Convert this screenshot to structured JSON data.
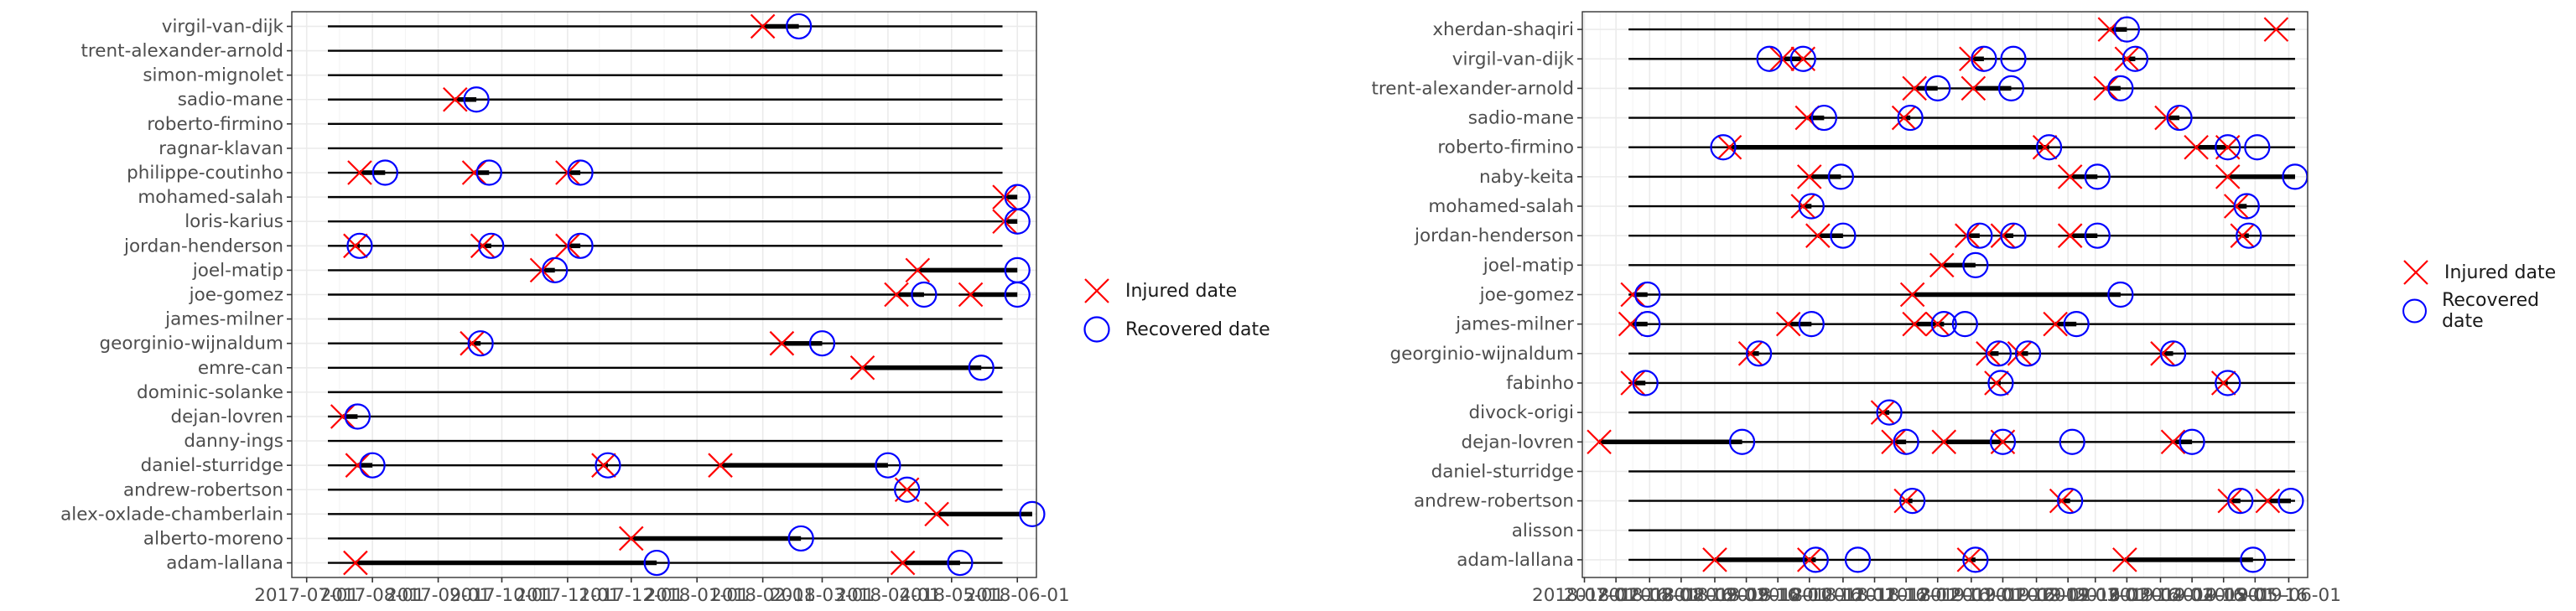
{
  "legend": {
    "injured_label": "Injured date",
    "recovered_label": "Recovered date"
  },
  "colors": {
    "injured": "#ff0000",
    "recovered": "#0000ff",
    "segment": "#000000",
    "grid": "#ebebeb",
    "axis_text": "#4d4d4d"
  },
  "chart_data": [
    {
      "type": "scatter",
      "title": "",
      "xlabel": "",
      "ylabel": "",
      "x_ticks": [
        "2017-07-01",
        "2017-08-01",
        "2017-09-01",
        "2017-10-01",
        "2017-11-01",
        "2017-12-01",
        "2018-01-01",
        "2018-02-01",
        "2018-03-01",
        "2018-04-01",
        "2018-05-01",
        "2018-06-01"
      ],
      "x_tick_labels": [
        "2017-07-01",
        "2017-08-01",
        "2017-09-01",
        "2017-10-01",
        "2017-11-01",
        "2017-12-01",
        "2018-01-01",
        "2018-02-01",
        "2018-03-01",
        "2018-04-01",
        "2018-05-01",
        "2018-06-01"
      ],
      "xlim": [
        "2017-06-24",
        "2018-06-10"
      ],
      "season_range": [
        "2017-07-11",
        "2018-05-25"
      ],
      "grid": true,
      "legend_position": "right",
      "players": [
        "virgil-van-dijk",
        "trent-alexander-arnold",
        "simon-mignolet",
        "sadio-mane",
        "roberto-firmino",
        "ragnar-klavan",
        "philippe-coutinho",
        "mohamed-salah",
        "loris-karius",
        "jordan-henderson",
        "joel-matip",
        "joe-gomez",
        "james-milner",
        "georginio-wijnaldum",
        "emre-can",
        "dominic-solanke",
        "dejan-lovren",
        "danny-ings",
        "daniel-sturridge",
        "andrew-robertson",
        "alex-oxlade-chamberlain",
        "alberto-moreno",
        "adam-lallana"
      ],
      "series": [
        {
          "name": "Injured date",
          "marker": "x",
          "points": [
            [
              "virgil-van-dijk",
              "2018-02-01"
            ],
            [
              "sadio-mane",
              "2017-09-09"
            ],
            [
              "philippe-coutinho",
              "2017-07-26"
            ],
            [
              "philippe-coutinho",
              "2017-09-18"
            ],
            [
              "philippe-coutinho",
              "2017-11-01"
            ],
            [
              "mohamed-salah",
              "2018-05-26"
            ],
            [
              "loris-karius",
              "2018-05-26"
            ],
            [
              "jordan-henderson",
              "2017-07-24"
            ],
            [
              "jordan-henderson",
              "2017-09-22"
            ],
            [
              "jordan-henderson",
              "2017-11-01"
            ],
            [
              "joel-matip",
              "2017-10-20"
            ],
            [
              "joel-matip",
              "2018-04-15"
            ],
            [
              "joe-gomez",
              "2018-04-05"
            ],
            [
              "joe-gomez",
              "2018-05-10"
            ],
            [
              "georginio-wijnaldum",
              "2017-09-17"
            ],
            [
              "georginio-wijnaldum",
              "2018-02-10"
            ],
            [
              "emre-can",
              "2018-03-20"
            ],
            [
              "dejan-lovren",
              "2017-07-18"
            ],
            [
              "daniel-sturridge",
              "2017-07-25"
            ],
            [
              "daniel-sturridge",
              "2017-11-18"
            ],
            [
              "daniel-sturridge",
              "2018-01-12"
            ],
            [
              "andrew-robertson",
              "2018-04-10"
            ],
            [
              "alex-oxlade-chamberlain",
              "2018-04-24"
            ],
            [
              "alberto-moreno",
              "2017-12-01"
            ],
            [
              "adam-lallana",
              "2017-07-24"
            ],
            [
              "adam-lallana",
              "2018-04-08"
            ]
          ]
        },
        {
          "name": "Recovered date",
          "marker": "o",
          "points": [
            [
              "virgil-van-dijk",
              "2018-02-18"
            ],
            [
              "sadio-mane",
              "2017-09-19"
            ],
            [
              "philippe-coutinho",
              "2017-08-07"
            ],
            [
              "philippe-coutinho",
              "2017-09-25"
            ],
            [
              "philippe-coutinho",
              "2017-11-07"
            ],
            [
              "mohamed-salah",
              "2018-06-01"
            ],
            [
              "loris-karius",
              "2018-06-01"
            ],
            [
              "jordan-henderson",
              "2017-07-26"
            ],
            [
              "jordan-henderson",
              "2017-09-26"
            ],
            [
              "jordan-henderson",
              "2017-11-07"
            ],
            [
              "joel-matip",
              "2017-10-26"
            ],
            [
              "joel-matip",
              "2018-06-01"
            ],
            [
              "joe-gomez",
              "2018-04-18"
            ],
            [
              "joe-gomez",
              "2018-06-01"
            ],
            [
              "georginio-wijnaldum",
              "2017-09-21"
            ],
            [
              "georginio-wijnaldum",
              "2018-03-01"
            ],
            [
              "emre-can",
              "2018-05-15"
            ],
            [
              "dejan-lovren",
              "2017-07-25"
            ],
            [
              "daniel-sturridge",
              "2017-08-01"
            ],
            [
              "daniel-sturridge",
              "2017-11-20"
            ],
            [
              "daniel-sturridge",
              "2018-04-01"
            ],
            [
              "andrew-robertson",
              "2018-04-10"
            ],
            [
              "alex-oxlade-chamberlain",
              "2018-06-08"
            ],
            [
              "alberto-moreno",
              "2018-02-19"
            ],
            [
              "adam-lallana",
              "2017-12-13"
            ],
            [
              "adam-lallana",
              "2018-05-05"
            ]
          ]
        }
      ]
    },
    {
      "type": "scatter",
      "title": "",
      "xlabel": "",
      "ylabel": "",
      "x_ticks": [
        "2018-07-01",
        "2018-07-16",
        "2018-08-01",
        "2018-08-16",
        "2018-09-01",
        "2018-09-16",
        "2018-10-01",
        "2018-10-16",
        "2018-11-01",
        "2018-11-16",
        "2018-12-01",
        "2018-12-16",
        "2019-01-01",
        "2019-01-16",
        "2019-02-01",
        "2019-02-16",
        "2019-03-01",
        "2019-03-16",
        "2019-04-01",
        "2019-04-16",
        "2019-05-01",
        "2019-05-16",
        "2019-06-01"
      ],
      "x_tick_labels": [
        "2018-07-01",
        "2018-07-16",
        "2018-08-01",
        "2018-08-16",
        "2018-09-01",
        "2018-09-16",
        "2018-10-01",
        "2018-10-16",
        "2018-11-01",
        "2018-11-16",
        "2018-12-01",
        "2018-12-16",
        "2019-01-01",
        "2019-01-16",
        "2019-02-01",
        "2019-02-16",
        "2019-03-01",
        "2019-03-16",
        "2019-04-01",
        "2019-04-16",
        "2019-05-01",
        "2019-05-16",
        "2019-06-01"
      ],
      "xlim": [
        "2018-06-30",
        "2019-06-10"
      ],
      "season_range": [
        "2018-07-22",
        "2019-06-04"
      ],
      "grid": true,
      "legend_position": "right",
      "players": [
        "xherdan-shaqiri",
        "virgil-van-dijk",
        "trent-alexander-arnold",
        "sadio-mane",
        "roberto-firmino",
        "naby-keita",
        "mohamed-salah",
        "jordan-henderson",
        "joel-matip",
        "joe-gomez",
        "james-milner",
        "georginio-wijnaldum",
        "fabinho",
        "divock-origi",
        "dejan-lovren",
        "daniel-sturridge",
        "andrew-robertson",
        "alisson",
        "adam-lallana"
      ],
      "series": [
        {
          "name": "Injured date",
          "marker": "x",
          "points": [
            [
              "xherdan-shaqiri",
              "2019-03-08"
            ],
            [
              "xherdan-shaqiri",
              "2019-05-26"
            ],
            [
              "virgil-van-dijk",
              "2018-10-03"
            ],
            [
              "virgil-van-dijk",
              "2018-10-13"
            ],
            [
              "virgil-van-dijk",
              "2019-01-01"
            ],
            [
              "virgil-van-dijk",
              "2019-03-16"
            ],
            [
              "trent-alexander-arnold",
              "2018-12-05"
            ],
            [
              "trent-alexander-arnold",
              "2019-01-02"
            ],
            [
              "trent-alexander-arnold",
              "2019-03-06"
            ],
            [
              "sadio-mane",
              "2018-10-15"
            ],
            [
              "sadio-mane",
              "2018-11-30"
            ],
            [
              "sadio-mane",
              "2019-04-04"
            ],
            [
              "roberto-firmino",
              "2018-09-08"
            ],
            [
              "roberto-firmino",
              "2019-02-05"
            ],
            [
              "roberto-firmino",
              "2019-04-18"
            ],
            [
              "roberto-firmino",
              "2019-05-03"
            ],
            [
              "naby-keita",
              "2018-10-16"
            ],
            [
              "naby-keita",
              "2019-02-17"
            ],
            [
              "naby-keita",
              "2019-05-03"
            ],
            [
              "mohamed-salah",
              "2018-10-13"
            ],
            [
              "mohamed-salah",
              "2019-05-07"
            ],
            [
              "jordan-henderson",
              "2018-10-20"
            ],
            [
              "jordan-henderson",
              "2018-12-30"
            ],
            [
              "jordan-henderson",
              "2019-01-16"
            ],
            [
              "jordan-henderson",
              "2019-02-17"
            ],
            [
              "jordan-henderson",
              "2019-05-10"
            ],
            [
              "joel-matip",
              "2018-12-18"
            ],
            [
              "joe-gomez",
              "2018-07-24"
            ],
            [
              "joe-gomez",
              "2018-12-04"
            ],
            [
              "james-milner",
              "2018-07-23"
            ],
            [
              "james-milner",
              "2018-10-06"
            ],
            [
              "james-milner",
              "2018-12-05"
            ],
            [
              "james-milner",
              "2018-12-16"
            ],
            [
              "james-milner",
              "2019-02-10"
            ],
            [
              "georginio-wijnaldum",
              "2018-09-18"
            ],
            [
              "georginio-wijnaldum",
              "2019-01-09"
            ],
            [
              "georginio-wijnaldum",
              "2019-01-24"
            ],
            [
              "georginio-wijnaldum",
              "2019-04-02"
            ],
            [
              "fabinho",
              "2018-07-24"
            ],
            [
              "fabinho",
              "2019-01-13"
            ],
            [
              "fabinho",
              "2019-05-01"
            ],
            [
              "divock-origi",
              "2018-11-20"
            ],
            [
              "dejan-lovren",
              "2018-07-08"
            ],
            [
              "dejan-lovren",
              "2018-11-25"
            ],
            [
              "dejan-lovren",
              "2018-12-19"
            ],
            [
              "dejan-lovren",
              "2019-01-16"
            ],
            [
              "dejan-lovren",
              "2019-04-07"
            ],
            [
              "andrew-robertson",
              "2018-12-01"
            ],
            [
              "andrew-robertson",
              "2019-02-13"
            ],
            [
              "andrew-robertson",
              "2019-05-04"
            ],
            [
              "andrew-robertson",
              "2019-05-22"
            ],
            [
              "adam-lallana",
              "2018-09-01"
            ],
            [
              "adam-lallana",
              "2018-10-16"
            ],
            [
              "adam-lallana",
              "2018-12-31"
            ],
            [
              "adam-lallana",
              "2019-03-15"
            ]
          ]
        },
        {
          "name": "Recovered date",
          "marker": "o",
          "points": [
            [
              "xherdan-shaqiri",
              "2019-03-16"
            ],
            [
              "virgil-van-dijk",
              "2018-09-27"
            ],
            [
              "virgil-van-dijk",
              "2018-10-13"
            ],
            [
              "virgil-van-dijk",
              "2019-01-07"
            ],
            [
              "virgil-van-dijk",
              "2019-01-21"
            ],
            [
              "virgil-van-dijk",
              "2019-03-20"
            ],
            [
              "trent-alexander-arnold",
              "2018-12-16"
            ],
            [
              "trent-alexander-arnold",
              "2019-01-20"
            ],
            [
              "trent-alexander-arnold",
              "2019-03-13"
            ],
            [
              "sadio-mane",
              "2018-10-23"
            ],
            [
              "sadio-mane",
              "2018-12-03"
            ],
            [
              "sadio-mane",
              "2019-04-10"
            ],
            [
              "roberto-firmino",
              "2018-09-05"
            ],
            [
              "roberto-firmino",
              "2019-02-07"
            ],
            [
              "roberto-firmino",
              "2019-05-03"
            ],
            [
              "roberto-firmino",
              "2019-05-17"
            ],
            [
              "naby-keita",
              "2018-10-31"
            ],
            [
              "naby-keita",
              "2019-03-02"
            ],
            [
              "naby-keita",
              "2019-06-04"
            ],
            [
              "mohamed-salah",
              "2018-10-17"
            ],
            [
              "mohamed-salah",
              "2019-05-12"
            ],
            [
              "jordan-henderson",
              "2018-11-01"
            ],
            [
              "jordan-henderson",
              "2019-01-05"
            ],
            [
              "jordan-henderson",
              "2019-01-21"
            ],
            [
              "jordan-henderson",
              "2019-03-02"
            ],
            [
              "jordan-henderson",
              "2019-05-13"
            ],
            [
              "joel-matip",
              "2019-01-03"
            ],
            [
              "joe-gomez",
              "2018-07-31"
            ],
            [
              "joe-gomez",
              "2019-03-13"
            ],
            [
              "james-milner",
              "2018-07-31"
            ],
            [
              "james-milner",
              "2018-10-17"
            ],
            [
              "james-milner",
              "2018-12-19"
            ],
            [
              "james-milner",
              "2018-12-29"
            ],
            [
              "james-milner",
              "2019-02-20"
            ],
            [
              "georginio-wijnaldum",
              "2018-09-22"
            ],
            [
              "georginio-wijnaldum",
              "2019-01-14"
            ],
            [
              "georginio-wijnaldum",
              "2019-01-28"
            ],
            [
              "georginio-wijnaldum",
              "2019-04-07"
            ],
            [
              "fabinho",
              "2018-07-30"
            ],
            [
              "fabinho",
              "2019-01-15"
            ],
            [
              "fabinho",
              "2019-05-03"
            ],
            [
              "divock-origi",
              "2018-11-23"
            ],
            [
              "dejan-lovren",
              "2018-09-14"
            ],
            [
              "dejan-lovren",
              "2018-12-01"
            ],
            [
              "dejan-lovren",
              "2019-01-16"
            ],
            [
              "dejan-lovren",
              "2019-02-18"
            ],
            [
              "dejan-lovren",
              "2019-04-16"
            ],
            [
              "andrew-robertson",
              "2018-12-04"
            ],
            [
              "andrew-robertson",
              "2019-02-17"
            ],
            [
              "andrew-robertson",
              "2019-05-09"
            ],
            [
              "andrew-robertson",
              "2019-06-02"
            ],
            [
              "adam-lallana",
              "2018-10-19"
            ],
            [
              "adam-lallana",
              "2018-11-08"
            ],
            [
              "adam-lallana",
              "2019-01-03"
            ],
            [
              "adam-lallana",
              "2019-05-15"
            ]
          ]
        }
      ]
    }
  ]
}
